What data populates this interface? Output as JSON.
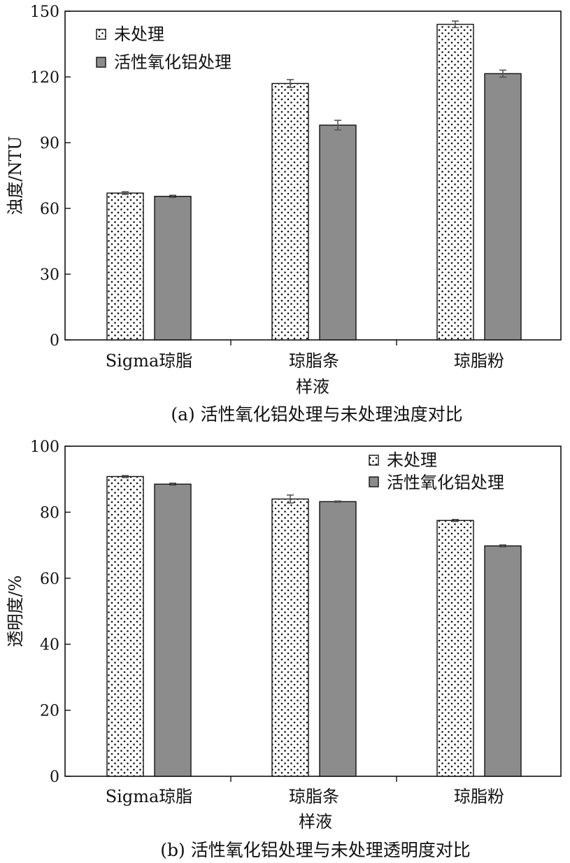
{
  "colors": {
    "treated_fill": "#8c8c8c",
    "untreated_fill": "dotted-white",
    "axis": "#111111"
  },
  "chart_data": [
    {
      "type": "bar",
      "panel": "a",
      "caption": "(a)  活性氧化铝处理与未处理浊度对比",
      "xlabel": "样液",
      "ylabel": "浊度/NTU",
      "categories": [
        "Sigma琼脂",
        "琼脂条",
        "琼脂粉"
      ],
      "ylim": [
        0,
        150
      ],
      "yticks": [
        "0",
        "30",
        "60",
        "90",
        "120",
        "150"
      ],
      "legend_position": "top-left",
      "series": [
        {
          "name": "未处理",
          "values": [
            67,
            117,
            144
          ],
          "errors": [
            0.6,
            1.8,
            1.5
          ]
        },
        {
          "name": "活性氧化铝处理",
          "values": [
            65.5,
            98,
            121.5
          ],
          "errors": [
            0.5,
            2.2,
            1.6
          ]
        }
      ]
    },
    {
      "type": "bar",
      "panel": "b",
      "caption": "(b)  活性氧化铝处理与未处理透明度对比",
      "xlabel": "样液",
      "ylabel": "透明度/%",
      "categories": [
        "Sigma琼脂",
        "琼脂条",
        "琼脂粉"
      ],
      "ylim": [
        0,
        100
      ],
      "yticks": [
        "0",
        "20",
        "40",
        "60",
        "80",
        "100"
      ],
      "legend_position": "top-right",
      "series": [
        {
          "name": "未处理",
          "values": [
            90.8,
            84,
            77.5
          ],
          "errors": [
            0.3,
            1.2,
            0.3
          ]
        },
        {
          "name": "活性氧化铝处理",
          "values": [
            88.5,
            83.2,
            69.8
          ],
          "errors": [
            0.3,
            0.2,
            0.3
          ]
        }
      ]
    }
  ]
}
